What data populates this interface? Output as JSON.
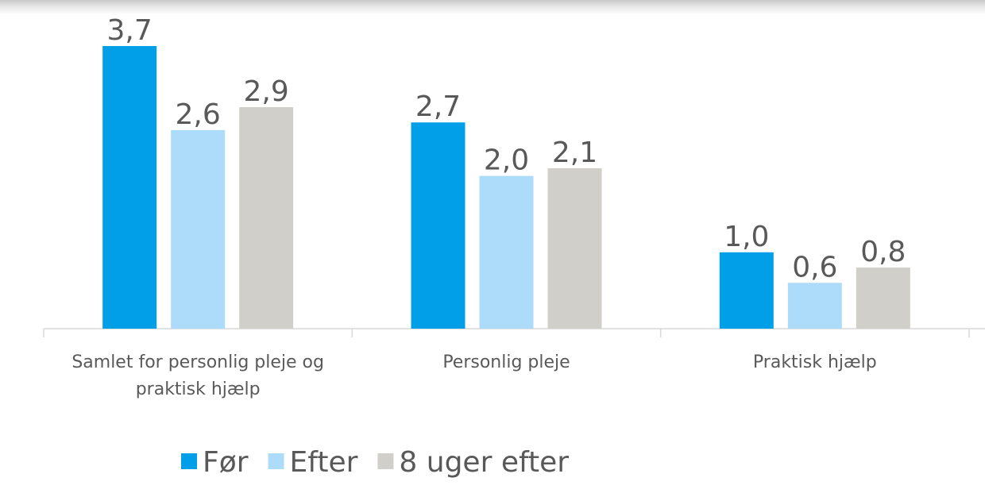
{
  "chart_data": {
    "type": "bar",
    "categories": [
      "Samlet for personlig pleje og praktisk hjælp",
      "Personlig pleje",
      "Praktisk hjælp"
    ],
    "series": [
      {
        "name": "Før",
        "color": "#009fe8",
        "values": [
          3.7,
          2.7,
          1.0
        ],
        "value_labels": [
          "3,7",
          "2,7",
          "1,0"
        ]
      },
      {
        "name": "Efter",
        "color": "#addcfa",
        "values": [
          2.6,
          2.0,
          0.6
        ],
        "value_labels": [
          "2,6",
          "2,0",
          "0,6"
        ]
      },
      {
        "name": "8 uger efter",
        "color": "#d0cfca",
        "values": [
          2.9,
          2.1,
          0.8
        ],
        "value_labels": [
          "2,9",
          "2,1",
          "0,8"
        ]
      }
    ]
  }
}
